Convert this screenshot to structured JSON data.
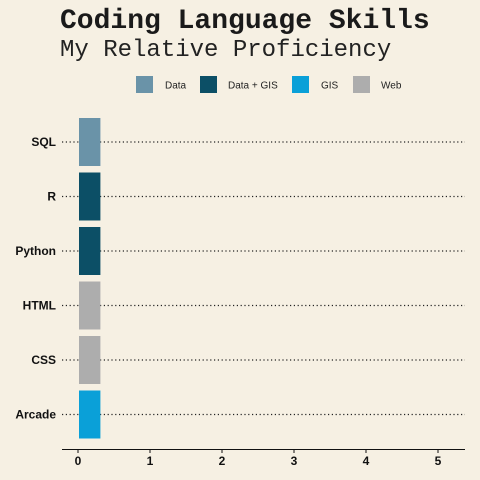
{
  "chart_data": {
    "type": "bar",
    "orientation": "horizontal",
    "title": "Coding Language Skills",
    "subtitle": "My Relative Proficiency",
    "categories": [
      "SQL",
      "R",
      "Python",
      "HTML",
      "CSS",
      "Arcade"
    ],
    "values": [
      0.2,
      0.2,
      0.2,
      0.2,
      0.2,
      0.2
    ],
    "groups": [
      "Data",
      "Data + GIS",
      "Data + GIS",
      "Web",
      "Web",
      "GIS"
    ],
    "xlim": [
      0,
      5
    ],
    "xticks": [
      "0",
      "1",
      "2",
      "3",
      "4",
      "5"
    ],
    "grid": "dotted horizontal",
    "legend": {
      "position": "top",
      "entries": [
        {
          "name": "Data",
          "color": "#6a93a8"
        },
        {
          "name": "Data + GIS",
          "color": "#0c4f66"
        },
        {
          "name": "GIS",
          "color": "#0aa0d8"
        },
        {
          "name": "Web",
          "color": "#adadad"
        }
      ]
    }
  }
}
